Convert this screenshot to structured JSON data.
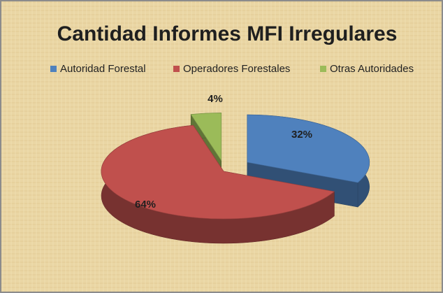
{
  "chart_data": {
    "type": "pie3d",
    "title": "Cantidad Informes MFI Irregulares",
    "categories": [
      "Autoridad Forestal",
      "Operadores Forestales",
      "Otras Autoridades"
    ],
    "values": [
      32,
      64,
      4
    ],
    "value_labels": [
      "32%",
      "64%",
      "4%"
    ],
    "colors": [
      "#4f81bd",
      "#c0504d",
      "#9bbb59"
    ],
    "legend": "top"
  }
}
